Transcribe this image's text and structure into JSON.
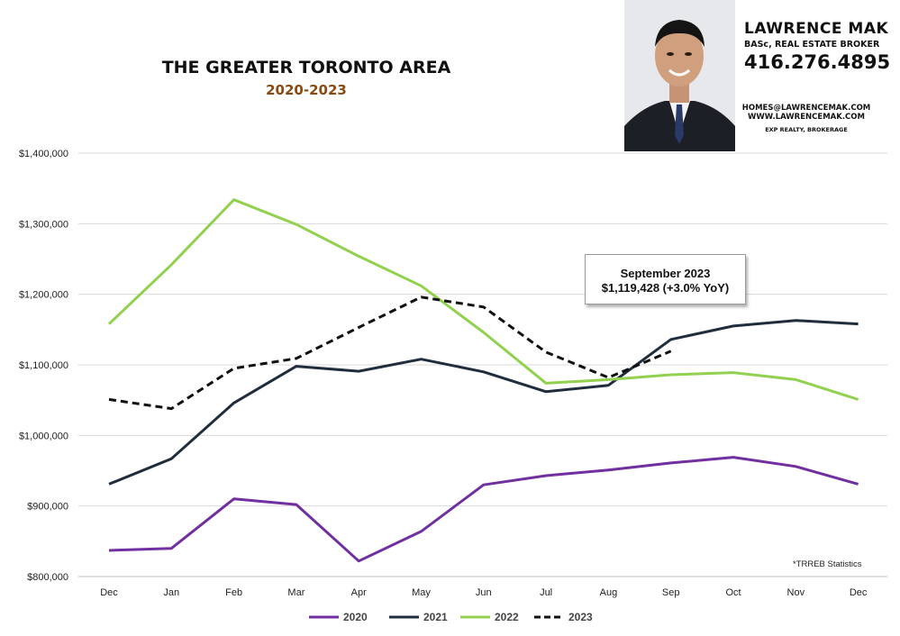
{
  "header": {
    "title": "THE GREATER TORONTO AREA",
    "subtitle": "2020-2023"
  },
  "agent": {
    "name": "LAWRENCE MAK",
    "credentials": "BASc, REAL ESTATE BROKER",
    "phone": "416.276.4895",
    "email": "HOMES@LAWRENCEMAK.COM",
    "website": "WWW.LAWRENCEMAK.COM",
    "brokerage": "EXP REALTY, BROKERAGE"
  },
  "annotation": {
    "line1": "September 2023",
    "line2": "$1,119,428  (+3.0%  YoY)"
  },
  "source_note": "*TRREB Statistics",
  "chart_data": {
    "type": "line",
    "title": "THE GREATER TORONTO AREA",
    "subtitle": "2020-2023",
    "categories": [
      "Dec",
      "Jan",
      "Feb",
      "Mar",
      "Apr",
      "May",
      "Jun",
      "Jul",
      "Aug",
      "Sep",
      "Oct",
      "Nov",
      "Dec"
    ],
    "ylim": [
      800000,
      1400000
    ],
    "yticks": [
      800000,
      900000,
      1000000,
      1100000,
      1200000,
      1300000,
      1400000
    ],
    "ytick_labels": [
      "$800,000",
      "$900,000",
      "$1,000,000",
      "$1,100,000",
      "$1,200,000",
      "$1,300,000",
      "$1,400,000"
    ],
    "grid": true,
    "legend_position": "bottom",
    "series": [
      {
        "name": "2020",
        "color": "#7030a0",
        "dash": false,
        "values": [
          837000,
          840000,
          910000,
          902000,
          822000,
          864000,
          930000,
          943000,
          951000,
          961000,
          969000,
          956000,
          931000
        ]
      },
      {
        "name": "2021",
        "color": "#1f2d3d",
        "dash": false,
        "values": [
          931000,
          967000,
          1046000,
          1098000,
          1091000,
          1108000,
          1090000,
          1062000,
          1071000,
          1136000,
          1155000,
          1163000,
          1158000
        ]
      },
      {
        "name": "2022",
        "color": "#92d050",
        "dash": false,
        "values": [
          1158000,
          1242000,
          1334000,
          1299000,
          1254000,
          1212000,
          1146000,
          1074000,
          1079000,
          1086000,
          1089000,
          1079000,
          1051000
        ]
      },
      {
        "name": "2023",
        "color": "#111111",
        "dash": true,
        "values": [
          1051000,
          1038000,
          1095000,
          1109000,
          1153000,
          1196000,
          1182000,
          1118000,
          1082000,
          1119428,
          null,
          null,
          null
        ]
      }
    ]
  }
}
